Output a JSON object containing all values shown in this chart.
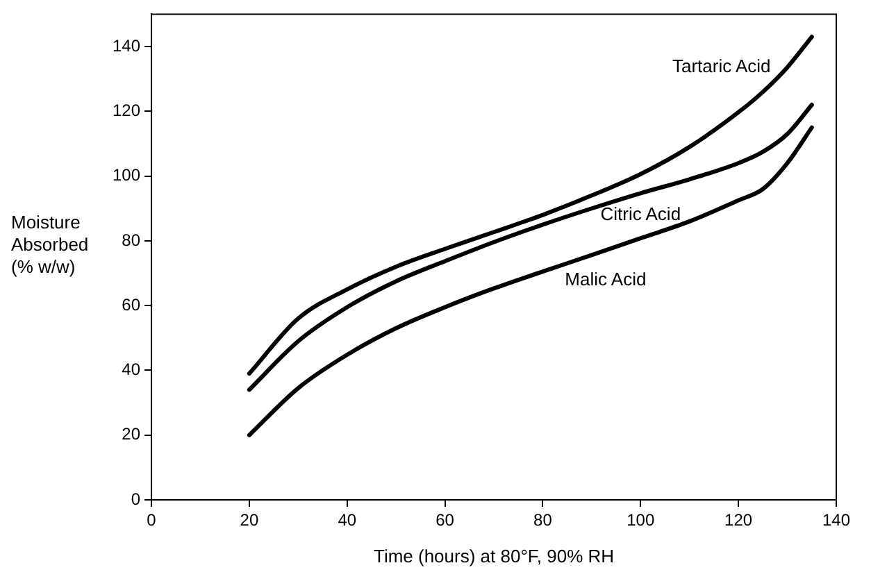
{
  "chart_data": {
    "type": "line",
    "xlabel": "Time (hours) at 80°F, 90% RH",
    "ylabel": "Moisture\nAbsorbed\n(% w/w)",
    "x": [
      20,
      30,
      40,
      50,
      60,
      70,
      80,
      90,
      100,
      110,
      120,
      125,
      130,
      135
    ],
    "series": [
      {
        "name": "Tartaric Acid",
        "color": "#000000",
        "values": [
          39,
          56,
          65,
          72,
          77.5,
          82.7,
          88,
          94,
          100.6,
          109,
          119.7,
          126,
          133.6,
          143
        ]
      },
      {
        "name": "Citric Acid",
        "color": "#000000",
        "values": [
          34,
          49,
          59.5,
          67.5,
          73.7,
          79.6,
          85,
          90,
          94.7,
          99,
          104,
          107.5,
          113,
          122
        ]
      },
      {
        "name": "Malic Acid",
        "color": "#000000",
        "values": [
          20,
          34.5,
          44.8,
          53,
          59.5,
          65.3,
          70.5,
          75.6,
          80.8,
          86,
          92.5,
          96,
          104,
          115
        ]
      }
    ],
    "xlim": [
      0,
      140
    ],
    "xticks": [
      0,
      20,
      40,
      60,
      80,
      100,
      120,
      140
    ],
    "ylim": [
      0,
      150
    ],
    "yticks": [
      0,
      20,
      40,
      60,
      80,
      100,
      120,
      140
    ],
    "grid": false,
    "legend": false,
    "marker": "none",
    "line_style": "solid"
  }
}
